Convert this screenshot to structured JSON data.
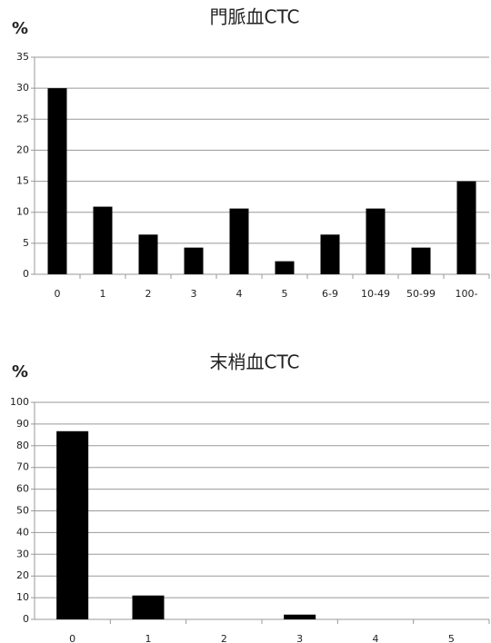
{
  "chart_data": [
    {
      "type": "bar",
      "title": "門脈血CTC",
      "y_label": "%",
      "categories": [
        "0",
        "1",
        "2",
        "3",
        "4",
        "5",
        "6-9",
        "10-49",
        "50-99",
        "100-"
      ],
      "values": [
        30,
        10.9,
        6.4,
        4.3,
        10.6,
        2.1,
        6.4,
        10.6,
        4.3,
        15
      ],
      "color": "#000000",
      "ylim": [
        0,
        35
      ],
      "yticks": [
        0,
        5,
        10,
        15,
        20,
        25,
        30,
        35
      ],
      "grid": true
    },
    {
      "type": "bar",
      "title": "末梢血CTC",
      "y_label": "%",
      "categories": [
        "0",
        "1",
        "2",
        "3",
        "4",
        "5"
      ],
      "values": [
        86.7,
        11,
        0,
        2.2,
        0,
        0
      ],
      "color": "#000000",
      "ylim": [
        0,
        100
      ],
      "yticks": [
        0,
        10,
        20,
        30,
        40,
        50,
        60,
        70,
        80,
        90,
        100
      ],
      "grid": true
    }
  ]
}
